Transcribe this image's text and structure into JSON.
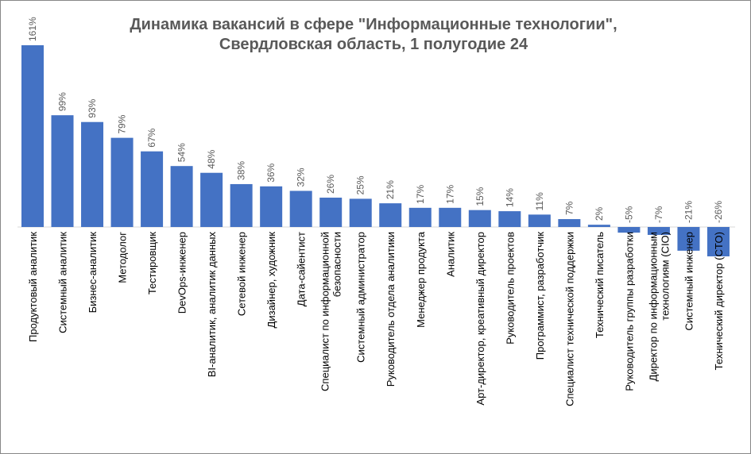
{
  "chart_data": {
    "type": "bar",
    "title": [
      "Динамика вакансий в сфере \"Информационные технологии\",",
      "Свердловская область, 1 полугодие 24"
    ],
    "categories": [
      "Продуктовый аналитик",
      "Системный аналитик",
      "Бизнес-аналитик",
      "Методолог",
      "Тестировщик",
      "DevOps-инженер",
      "BI-аналитик, аналитик данных",
      "Сетевой инженер",
      "Дизайнер, художник",
      "Дата-сайентист",
      "Специалист по информационной\nбезопасности",
      "Системный администратор",
      "Руководитель отдела аналитики",
      "Менеджер  продукта",
      "Аналитик",
      "Арт-директор, креативный директор",
      "Руководитель проектов",
      "Программист,  разработчик",
      "Специалист технической поддержки",
      "Технический писатель",
      "Руководитель группы разработки",
      "Директор по информационным\nтехнологиям (CIO)",
      "Системный инженер",
      "Технический директор (CTO)"
    ],
    "values": [
      161,
      99,
      93,
      79,
      67,
      54,
      48,
      38,
      36,
      32,
      26,
      25,
      21,
      17,
      17,
      15,
      14,
      11,
      7,
      2,
      -5,
      -7,
      -21,
      -26
    ],
    "value_labels": [
      "161%",
      "99%",
      "93%",
      "79%",
      "67%",
      "54%",
      "48%",
      "38%",
      "36%",
      "32%",
      "26%",
      "25%",
      "21%",
      "17%",
      "17%",
      "15%",
      "14%",
      "11%",
      "7%",
      "2%",
      "-5%",
      "-7%",
      "-21%",
      "-26%"
    ],
    "color": "#4472c4"
  }
}
